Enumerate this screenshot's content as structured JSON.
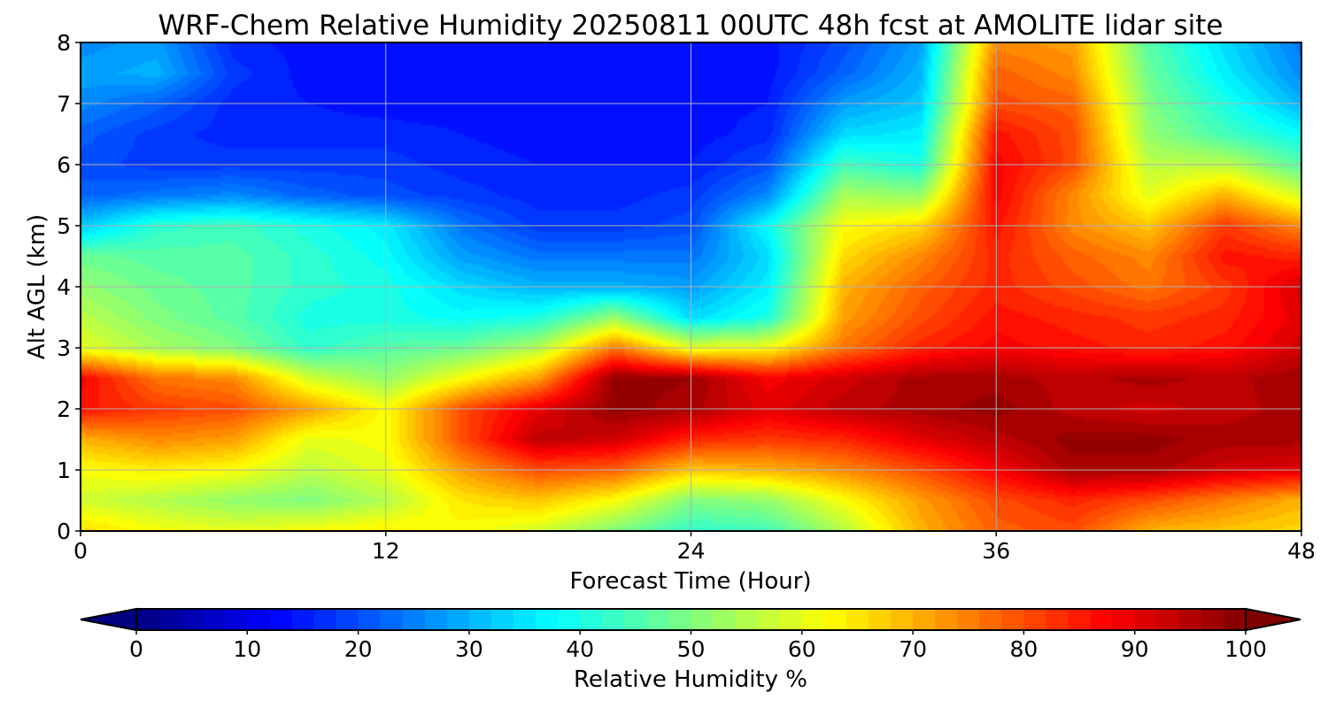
{
  "chart_data": {
    "type": "heatmap",
    "title": "WRF-Chem Relative Humidity 20250811 00UTC 48h fcst at AMOLITE lidar site",
    "xlabel": "Forecast Time (Hour)",
    "ylabel": "Alt AGL (km)",
    "xlim": [
      0,
      48
    ],
    "ylim": [
      0,
      8
    ],
    "x_ticks": [
      "0",
      "12",
      "24",
      "36",
      "48"
    ],
    "y_ticks": [
      "0",
      "1",
      "2",
      "3",
      "4",
      "5",
      "6",
      "7",
      "8"
    ],
    "grid": true,
    "colorbar": {
      "label": "Relative Humidity %",
      "range": [
        0,
        100
      ],
      "ticks": [
        "0",
        "10",
        "20",
        "30",
        "40",
        "50",
        "60",
        "70",
        "80",
        "90",
        "100"
      ],
      "extend": "both",
      "colormap": "jet"
    },
    "x": [
      0,
      3,
      6,
      9,
      12,
      15,
      18,
      21,
      24,
      27,
      30,
      33,
      36,
      39,
      42,
      45,
      48
    ],
    "y": [
      0,
      0.5,
      1,
      1.5,
      2,
      2.5,
      3,
      3.5,
      4,
      4.5,
      5,
      5.5,
      6,
      6.5,
      7,
      7.5,
      8
    ],
    "z": [
      [
        66,
        62,
        60,
        62,
        64,
        62,
        58,
        50,
        42,
        44,
        55,
        70,
        78,
        80,
        70,
        68,
        66
      ],
      [
        58,
        55,
        52,
        50,
        55,
        65,
        68,
        62,
        50,
        52,
        62,
        72,
        80,
        84,
        80,
        75,
        70
      ],
      [
        62,
        64,
        62,
        56,
        60,
        72,
        80,
        78,
        68,
        70,
        74,
        80,
        88,
        96,
        96,
        92,
        90
      ],
      [
        70,
        74,
        72,
        60,
        62,
        80,
        94,
        92,
        84,
        82,
        84,
        90,
        94,
        98,
        98,
        96,
        96
      ],
      [
        86,
        82,
        80,
        72,
        62,
        80,
        90,
        98,
        96,
        90,
        94,
        96,
        98,
        94,
        92,
        94,
        96
      ],
      [
        88,
        76,
        74,
        58,
        52,
        62,
        72,
        98,
        97,
        88,
        92,
        96,
        96,
        94,
        96,
        94,
        97
      ],
      [
        60,
        54,
        50,
        42,
        46,
        48,
        55,
        76,
        60,
        62,
        76,
        84,
        88,
        86,
        84,
        86,
        92
      ],
      [
        56,
        50,
        46,
        40,
        40,
        38,
        40,
        52,
        34,
        40,
        72,
        80,
        86,
        84,
        82,
        84,
        90
      ],
      [
        52,
        48,
        46,
        42,
        40,
        34,
        30,
        30,
        28,
        36,
        70,
        78,
        84,
        80,
        76,
        82,
        92
      ],
      [
        48,
        46,
        46,
        42,
        38,
        28,
        24,
        24,
        24,
        34,
        66,
        74,
        84,
        78,
        74,
        86,
        84
      ],
      [
        32,
        42,
        44,
        40,
        36,
        24,
        18,
        18,
        20,
        38,
        62,
        66,
        86,
        74,
        68,
        82,
        74
      ],
      [
        22,
        24,
        26,
        22,
        20,
        18,
        16,
        16,
        18,
        26,
        54,
        52,
        88,
        74,
        60,
        70,
        58
      ],
      [
        20,
        18,
        18,
        18,
        18,
        16,
        15,
        15,
        15,
        20,
        44,
        40,
        88,
        80,
        56,
        56,
        46
      ],
      [
        22,
        18,
        16,
        16,
        16,
        15,
        14,
        14,
        14,
        16,
        34,
        36,
        86,
        80,
        52,
        44,
        38
      ],
      [
        26,
        22,
        16,
        15,
        14,
        14,
        14,
        14,
        14,
        15,
        28,
        32,
        80,
        78,
        50,
        40,
        30
      ],
      [
        28,
        30,
        18,
        14,
        14,
        14,
        14,
        14,
        14,
        14,
        22,
        30,
        78,
        74,
        48,
        36,
        26
      ],
      [
        26,
        28,
        16,
        14,
        14,
        14,
        14,
        14,
        14,
        14,
        20,
        28,
        74,
        72,
        46,
        34,
        24
      ]
    ]
  }
}
